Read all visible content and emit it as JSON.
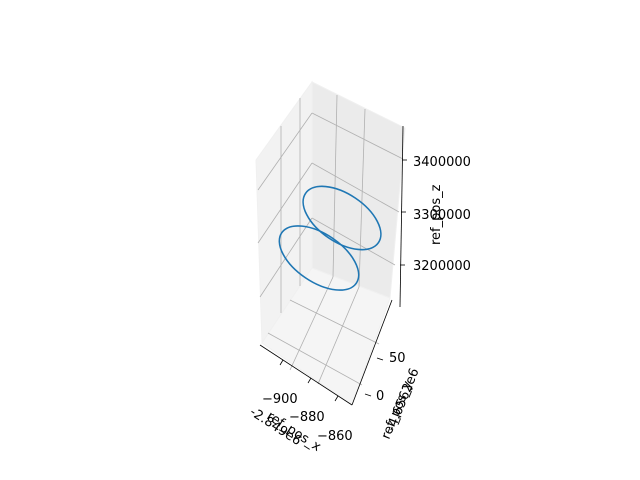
{
  "chart_data": {
    "type": "line3d",
    "title": "",
    "xlabel": "ref_pos_x",
    "ylabel": "ref_pos_y",
    "zlabel": "ref_pos_z",
    "x_offset_label": "-2.849e6",
    "y_offset_label": "-4.6562e6",
    "x_ticks": [
      "−900",
      "−880",
      "−860"
    ],
    "y_ticks": [
      "0",
      "50"
    ],
    "z_ticks": [
      "3200000",
      "3300000",
      "3400000"
    ],
    "grid": true,
    "series": [
      {
        "color": "#1f77b4",
        "description_points": "two ellipse-like loops forming a figure-eight trajectory",
        "z_range": [
          3165000,
          3310000
        ]
      }
    ]
  }
}
